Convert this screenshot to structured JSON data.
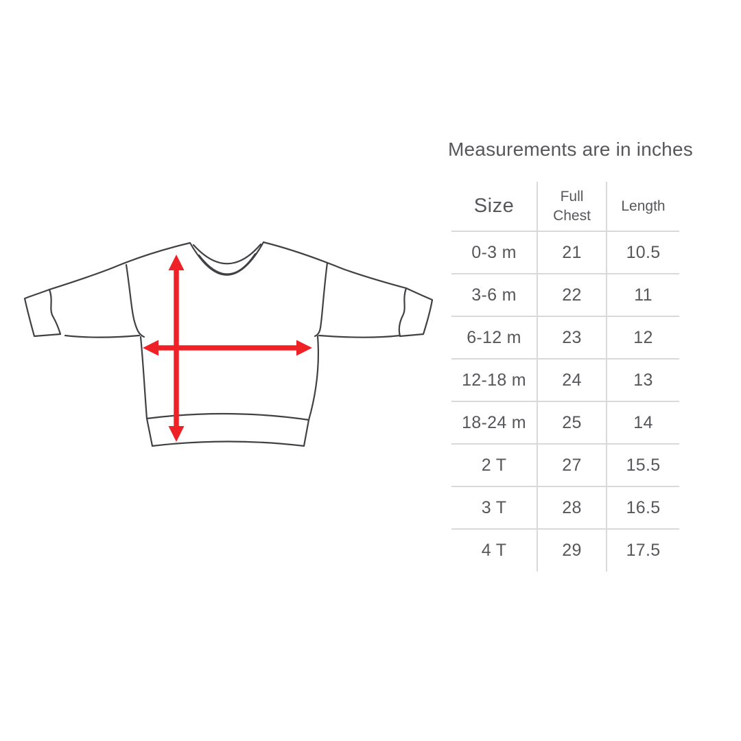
{
  "colors": {
    "text": "#56575b",
    "table_line": "#d9d9d9",
    "arrow_red": "#ee2226",
    "sketch_line": "#404045",
    "background": "#ffffff"
  },
  "note": {
    "text": "Measurements are in inches"
  },
  "size_table": {
    "columns": [
      "Size",
      "Full Chest",
      "Length"
    ],
    "rows": [
      [
        "0-3 m",
        "21",
        "10.5"
      ],
      [
        "3-6 m",
        "22",
        "11"
      ],
      [
        "6-12 m",
        "23",
        "12"
      ],
      [
        "12-18 m",
        "24",
        "13"
      ],
      [
        "18-24 m",
        "25",
        "14"
      ],
      [
        "2 T",
        "27",
        "15.5"
      ],
      [
        "3 T",
        "28",
        "16.5"
      ],
      [
        "4 T",
        "29",
        "17.5"
      ]
    ]
  },
  "diagram": {
    "subject": "baby sweatshirt line drawing",
    "arrows": [
      {
        "name": "length-arrow",
        "direction": "vertical",
        "measures": "Length"
      },
      {
        "name": "chest-arrow",
        "direction": "horizontal",
        "measures": "Full Chest"
      }
    ]
  },
  "chart_data": {
    "type": "table",
    "title": "Measurements are in inches",
    "columns": [
      "Size",
      "Full Chest",
      "Length"
    ],
    "rows": [
      [
        "0-3 m",
        21,
        10.5
      ],
      [
        "3-6 m",
        22,
        11
      ],
      [
        "6-12 m",
        23,
        12
      ],
      [
        "12-18 m",
        24,
        13
      ],
      [
        "18-24 m",
        25,
        14
      ],
      [
        "2 T",
        27,
        15.5
      ],
      [
        "3 T",
        28,
        16.5
      ],
      [
        "4 T",
        29,
        17.5
      ]
    ]
  }
}
